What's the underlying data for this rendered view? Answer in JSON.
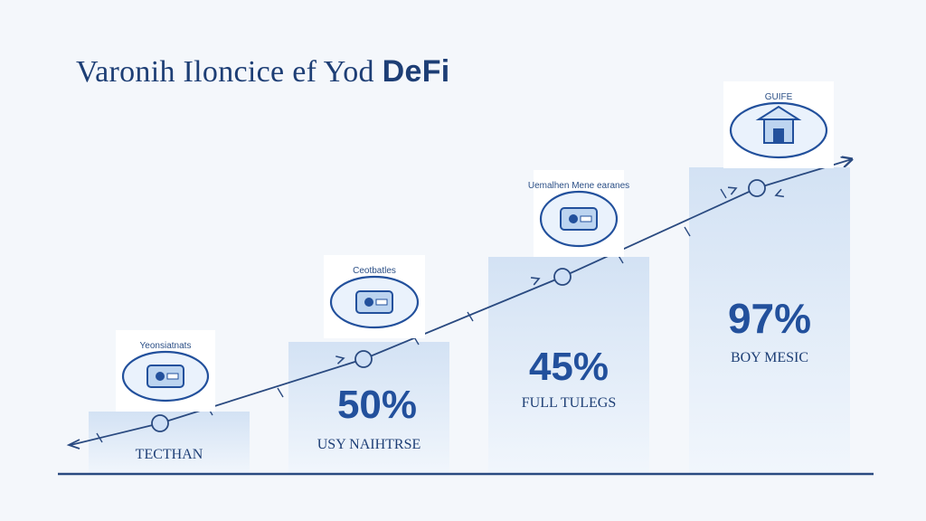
{
  "title": {
    "main": "Varonih Iloncice ef Yod",
    "accent": "DeFi"
  },
  "colors": {
    "bar_top": "#d3e2f4",
    "bar_bottom": "#f1f6fc",
    "ink": "#1d3e75",
    "accent": "#22509c",
    "line": "#2a4a80",
    "node_fill": "#cfe0f6"
  },
  "chart_data": {
    "type": "bar",
    "title": "Varonih Iloncice ef Yod DeFi",
    "categories": [
      "TECTHAN",
      "USY NAIHTRSE",
      "FULL TULEGS",
      "BOY MESIC"
    ],
    "series": [
      {
        "values": [
          null,
          50,
          45,
          97
        ],
        "labels": [
          "",
          "50%",
          "45%",
          "97%"
        ]
      }
    ],
    "icons": [
      {
        "name": "wallet-icon",
        "label": "Yeonsiatnats"
      },
      {
        "name": "cloud-exchange-icon",
        "label": "Ceotbatles"
      },
      {
        "name": "network-icon",
        "label": "Uemalhen Mene earanes"
      },
      {
        "name": "temple-icon",
        "label": "GUIFE"
      }
    ],
    "trend": "rising",
    "grid": false,
    "legend": "none"
  }
}
